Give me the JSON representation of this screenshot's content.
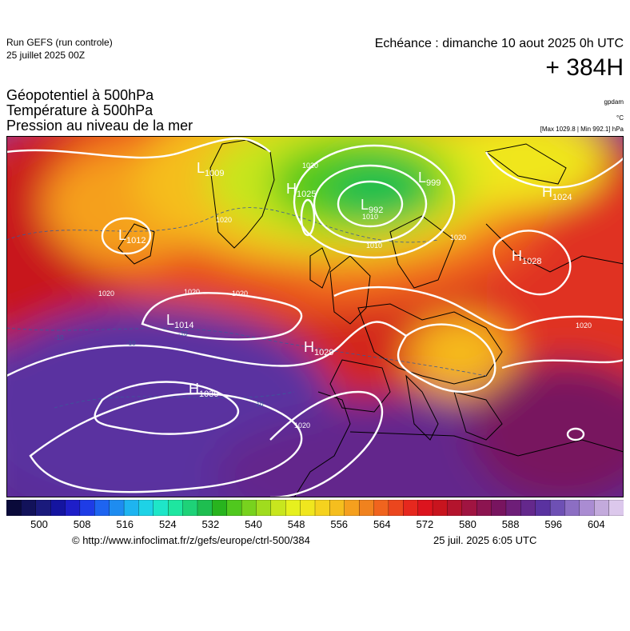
{
  "header": {
    "run_title": "Run GEFS (run controle)",
    "run_date": "25 juillet 2025 00Z",
    "echeance": "Echéance : dimanche 10 aout 2025 0h UTC",
    "horizon": "+ 384H"
  },
  "parameters": {
    "line1": "Géopotentiel à 500hPa",
    "line2": "Température à 500hPa",
    "line3": "Pression au niveau de la mer"
  },
  "units": {
    "geopotential": "gpdam",
    "temperature": "°C",
    "pressure_range": "[Max 1029.8 | Min 992.1] hPa"
  },
  "map": {
    "region": "Europe / North Atlantic",
    "pressure_centers": [
      {
        "type": "H",
        "value": "1025"
      },
      {
        "type": "H",
        "value": "1024"
      },
      {
        "type": "H",
        "value": "1028"
      },
      {
        "type": "H",
        "value": "1029"
      },
      {
        "type": "H",
        "value": "1030"
      },
      {
        "type": "L",
        "value": "992"
      },
      {
        "type": "L",
        "value": "999"
      },
      {
        "type": "L",
        "value": "1009"
      },
      {
        "type": "L",
        "value": "1014"
      },
      {
        "type": "L",
        "value": "1012"
      }
    ],
    "isobar_labels": [
      "1020",
      "1020",
      "1020",
      "1020",
      "1020",
      "1020",
      "1020",
      "1010",
      "1020",
      "1010"
    ],
    "isotherm_labels": [
      "-10",
      "-10",
      "-10",
      "-10"
    ]
  },
  "colorbar": {
    "tick_labels": [
      "500",
      "508",
      "516",
      "524",
      "532",
      "540",
      "548",
      "556",
      "564",
      "572",
      "580",
      "588",
      "596",
      "604"
    ],
    "colors": [
      "#0a0a3a",
      "#12125a",
      "#1a1a7c",
      "#1414a0",
      "#1e1ec8",
      "#1e3ce6",
      "#1e64f0",
      "#1e8cf0",
      "#1eb4f0",
      "#1ed2e6",
      "#1ee6c8",
      "#1ee6a0",
      "#1ed278",
      "#1ebe50",
      "#28b41e",
      "#50c81e",
      "#78d21e",
      "#a0dc1e",
      "#c8e61e",
      "#e6f01e",
      "#f0e61e",
      "#f5d21e",
      "#f5be1e",
      "#f5a01e",
      "#f0821e",
      "#f0641e",
      "#eb461e",
      "#e6281e",
      "#dc141e",
      "#c8141e",
      "#b4142d",
      "#a01441",
      "#8c1450",
      "#78145f",
      "#6e1e78",
      "#64288c",
      "#5a32a0",
      "#6e50b4",
      "#8c6ec3",
      "#aa8cd2",
      "#c3aadc",
      "#dcc8ec"
    ]
  },
  "footer": {
    "url": "© http://www.infoclimat.fr/z/gefs/europe/ctrl-500/384",
    "generated": "25 juil. 2025  6:05 UTC"
  }
}
